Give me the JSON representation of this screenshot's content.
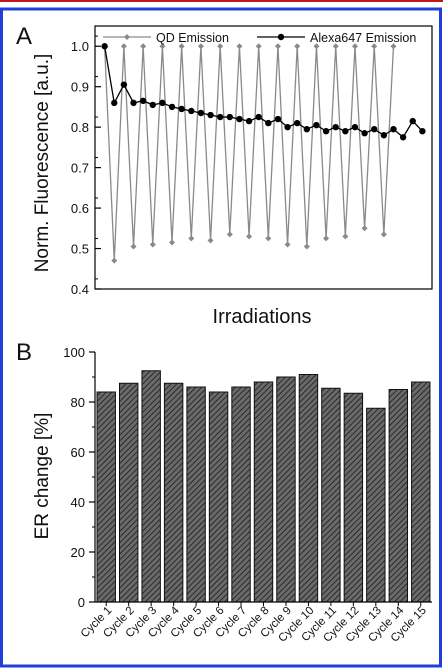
{
  "colors": {
    "top_rule": "#c0141e",
    "border": "#1f3fd8",
    "qd": "#8a8a8a",
    "alexa": "#000000",
    "bar_fill": "#5a5a5a"
  },
  "chart_data": [
    {
      "panel_label": "A",
      "type": "line",
      "xlabel": "Irradiations",
      "ylabel": "Norm. Fluorescence [a.u.]",
      "ylim": [
        0.4,
        1.05
      ],
      "yticks": [
        "0.4",
        "0.5",
        "0.6",
        "0.7",
        "0.8",
        "0.9",
        "1.0"
      ],
      "legend": "top",
      "series": [
        {
          "name": "QD Emission",
          "marker": "diamond",
          "x": [
            1,
            2,
            3,
            4,
            5,
            6,
            7,
            8,
            9,
            10,
            11,
            12,
            13,
            14,
            15,
            16,
            17,
            18,
            19,
            20,
            21,
            22,
            23,
            24,
            25,
            26,
            27,
            28,
            29,
            30,
            31
          ],
          "values": [
            1.0,
            0.47,
            1.0,
            0.505,
            1.0,
            0.51,
            1.0,
            0.515,
            1.0,
            0.525,
            1.0,
            0.52,
            1.0,
            0.535,
            1.0,
            0.53,
            1.0,
            0.525,
            1.0,
            0.51,
            1.0,
            0.505,
            1.0,
            0.525,
            1.0,
            0.53,
            1.0,
            0.55,
            1.0,
            0.535,
            1.0
          ]
        },
        {
          "name": "Alexa647 Emission",
          "marker": "circle",
          "x": [
            1,
            2,
            3,
            4,
            5,
            6,
            7,
            8,
            9,
            10,
            11,
            12,
            13,
            14,
            15,
            16,
            17,
            18,
            19,
            20,
            21,
            22,
            23,
            24,
            25,
            26,
            27,
            28,
            29,
            30,
            31,
            32,
            33,
            34
          ],
          "values": [
            1.0,
            0.86,
            0.905,
            0.86,
            0.865,
            0.855,
            0.86,
            0.85,
            0.845,
            0.84,
            0.835,
            0.83,
            0.825,
            0.825,
            0.82,
            0.815,
            0.825,
            0.81,
            0.82,
            0.8,
            0.81,
            0.795,
            0.805,
            0.79,
            0.8,
            0.79,
            0.8,
            0.785,
            0.795,
            0.78,
            0.795,
            0.775,
            0.815,
            0.79
          ]
        }
      ]
    },
    {
      "panel_label": "B",
      "type": "bar",
      "ylabel": "ER change [%]",
      "ylim": [
        0,
        100
      ],
      "yticks": [
        "0",
        "20",
        "40",
        "60",
        "80",
        "100"
      ],
      "categories": [
        "Cycle 1",
        "Cycle 2",
        "Cycle 3",
        "Cycle 4",
        "Cycle 5",
        "Cycle 6",
        "Cycle 7",
        "Cycle 8",
        "Cycle 9",
        "Cycle 10",
        "Cycle 11",
        "Cycle 12",
        "Cycle 13",
        "Cycle 14",
        "Cycle 15"
      ],
      "values": [
        84,
        87.5,
        92.5,
        87.5,
        86,
        84,
        86,
        88,
        90,
        91,
        85.5,
        83.5,
        77.5,
        85,
        88
      ]
    }
  ]
}
